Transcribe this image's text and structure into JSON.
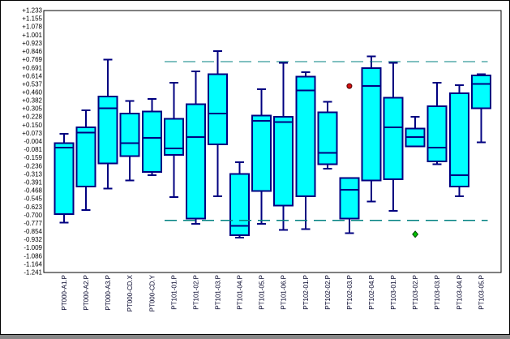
{
  "window": {
    "background": "#ffffff",
    "border_color": "#000000"
  },
  "chart_data": {
    "type": "boxplot",
    "title": "",
    "xlabel": "",
    "ylabel": "",
    "grid": false,
    "legend": "none",
    "categories": [
      "PT000-A1.P",
      "PT000-A2.P",
      "PT000-A3.P",
      "PT000-CD.X",
      "PT000-CD.Y",
      "PT101-01.P",
      "PT101-02.P",
      "PT101-03.P",
      "PT101-04.P",
      "PT101-05.P",
      "PT101-06.P",
      "PT102-01.P",
      "PT102-02.P",
      "PT102-03.P",
      "PT102-04.P",
      "PT103-01.P",
      "PT103-02.P",
      "PT103-03.P",
      "PT103-04.P",
      "PT103-05.P"
    ],
    "boxes": [
      {
        "category": "PT000-A1.P",
        "low": -0.77,
        "q1": -0.69,
        "median": -0.06,
        "q3": -0.02,
        "high": 0.07
      },
      {
        "category": "PT000-A2.P",
        "low": -0.65,
        "q1": -0.43,
        "median": 0.08,
        "q3": 0.13,
        "high": 0.29
      },
      {
        "category": "PT000-A3.P",
        "low": -0.45,
        "q1": -0.21,
        "median": 0.31,
        "q3": 0.42,
        "high": 0.77
      },
      {
        "category": "PT000-CD.X",
        "low": -0.37,
        "q1": -0.14,
        "median": -0.02,
        "q3": 0.26,
        "high": 0.38
      },
      {
        "category": "PT000-CD.Y",
        "low": -0.32,
        "q1": -0.29,
        "median": 0.03,
        "q3": 0.28,
        "high": 0.4
      },
      {
        "category": "PT101-01.P",
        "low": -0.53,
        "q1": -0.13,
        "median": -0.07,
        "q3": 0.21,
        "high": 0.55
      },
      {
        "category": "PT101-02.P",
        "low": -0.78,
        "q1": -0.73,
        "median": 0.04,
        "q3": 0.35,
        "high": 0.66
      },
      {
        "category": "PT101-03.P",
        "low": -0.52,
        "q1": -0.03,
        "median": 0.26,
        "q3": 0.63,
        "high": 0.85
      },
      {
        "category": "PT101-04.P",
        "low": -0.91,
        "q1": -0.89,
        "median": -0.8,
        "q3": -0.31,
        "high": -0.2
      },
      {
        "category": "PT101-05.P",
        "low": -0.78,
        "q1": -0.47,
        "median": 0.19,
        "q3": 0.24,
        "high": 0.49
      },
      {
        "category": "PT101-06.P",
        "low": -0.84,
        "q1": -0.61,
        "median": 0.18,
        "q3": 0.23,
        "high": 0.74
      },
      {
        "category": "PT102-01.P",
        "low": -0.83,
        "q1": -0.52,
        "median": 0.48,
        "q3": 0.61,
        "high": 0.65
      },
      {
        "category": "PT102-02.P",
        "low": -0.26,
        "q1": -0.22,
        "median": -0.11,
        "q3": 0.27,
        "high": 0.37
      },
      {
        "category": "PT102-03.P",
        "low": -0.87,
        "q1": -0.73,
        "median": -0.46,
        "q3": -0.35,
        "high": -0.35
      },
      {
        "category": "PT102-04.P",
        "low": -0.57,
        "q1": -0.37,
        "median": 0.52,
        "q3": 0.69,
        "high": 0.8
      },
      {
        "category": "PT103-01.P",
        "low": -0.66,
        "q1": -0.36,
        "median": 0.13,
        "q3": 0.41,
        "high": 0.74
      },
      {
        "category": "PT103-02.P",
        "low": -0.05,
        "q1": -0.05,
        "median": 0.04,
        "q3": 0.12,
        "high": 0.23
      },
      {
        "category": "PT103-03.P",
        "low": -0.22,
        "q1": -0.19,
        "median": -0.06,
        "q3": 0.33,
        "high": 0.55
      },
      {
        "category": "PT103-04.P",
        "low": -0.52,
        "q1": -0.43,
        "median": -0.32,
        "q3": 0.45,
        "high": 0.53
      },
      {
        "category": "PT103-05.P",
        "low": -0.01,
        "q1": 0.31,
        "median": 0.54,
        "q3": 0.62,
        "high": 0.63
      }
    ],
    "outliers": [
      {
        "category": "PT102-03.P",
        "value": 0.52,
        "marker": "circle",
        "fill": "#d41111",
        "stroke": "#4d0000"
      },
      {
        "category": "PT103-02.P",
        "value": -0.88,
        "marker": "diamond",
        "fill": "#00c300",
        "stroke": "#004400"
      }
    ],
    "control_limits": {
      "upper": 0.75,
      "lower": -0.75,
      "from_category": "PT101-01.P",
      "to_category": "PT103-05.P",
      "style": "dashed",
      "color": "#008080"
    },
    "y_axis": {
      "min": -1.241,
      "max": 1.233,
      "tick_labels": [
        "+1.233",
        "+1.155",
        "+1.078",
        "+1.001",
        "+0.923",
        "+0.846",
        "+0.769",
        "+0.691",
        "+0.614",
        "+0.537",
        "+0.460",
        "+0.382",
        "+0.305",
        "+0.228",
        "+0.150",
        "+0.073",
        "-0.004",
        "-0.081",
        "-0.159",
        "-0.236",
        "-0.313",
        "-0.391",
        "-0.468",
        "-0.545",
        "-0.623",
        "-0.700",
        "-0.777",
        "-0.854",
        "-0.932",
        "-1.009",
        "-1.086",
        "-1.164",
        "-1.241"
      ],
      "label_color": "#000000"
    },
    "x_axis": {
      "label_rotation": -90,
      "label_color": "#000028"
    },
    "colors": {
      "box_fill": "#00ffff",
      "box_border": "#000080",
      "whisker": "#000080",
      "frame": "#000000"
    }
  }
}
